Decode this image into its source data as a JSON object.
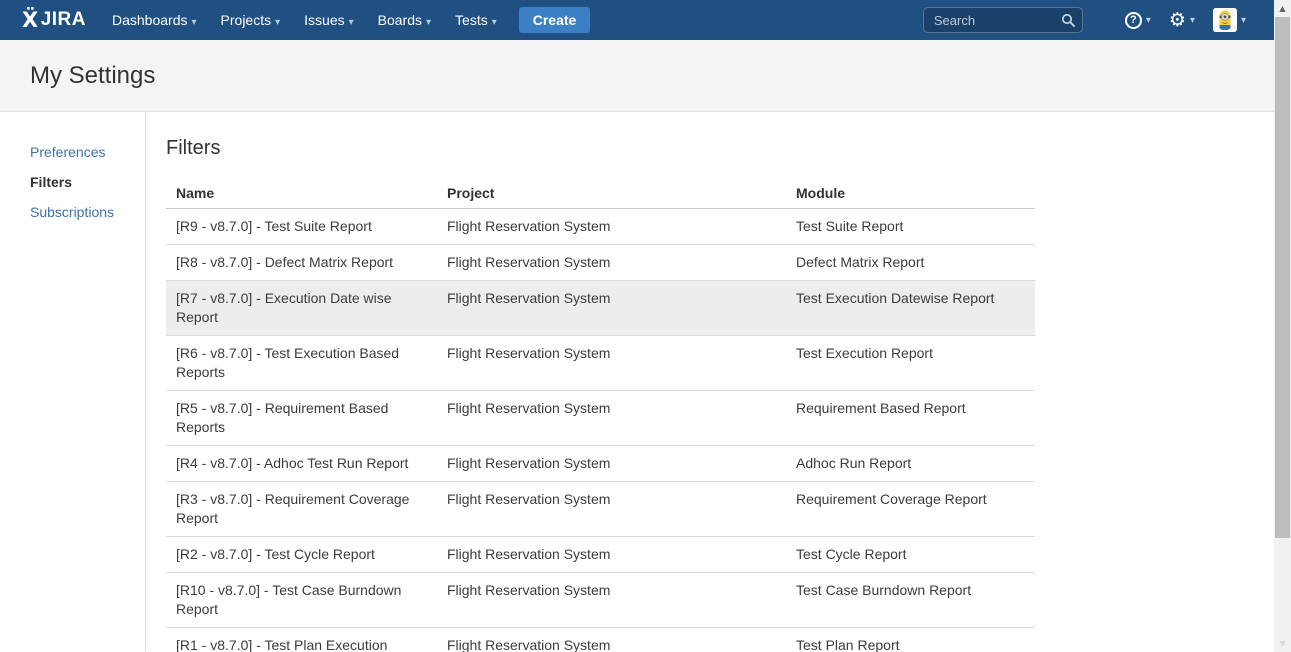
{
  "navbar": {
    "logo": {
      "mark": "Ẍ",
      "text": "JIRA"
    },
    "menus": [
      {
        "label": "Dashboards"
      },
      {
        "label": "Projects"
      },
      {
        "label": "Issues"
      },
      {
        "label": "Boards"
      },
      {
        "label": "Tests"
      }
    ],
    "create_label": "Create",
    "search_placeholder": "Search",
    "caret_glyph": "▾",
    "help_glyph": "?",
    "gear_glyph": "⚙"
  },
  "colors": {
    "navbar_bg": "#205081",
    "create_button": "#3b7fc4",
    "link": "#3b73af",
    "highlight_row": "#ededed",
    "band_bg": "#f4f4f4"
  },
  "page": {
    "title": "My Settings"
  },
  "sidebar": {
    "items": [
      {
        "label": "Preferences",
        "active": false
      },
      {
        "label": "Filters",
        "active": true
      },
      {
        "label": "Subscriptions",
        "active": false
      }
    ]
  },
  "main": {
    "heading": "Filters",
    "table": {
      "columns": [
        "Name",
        "Project",
        "Module"
      ],
      "rows": [
        {
          "name": "[R9 - v8.7.0] - Test Suite Report",
          "project": "Flight Reservation System",
          "module": "Test Suite Report",
          "highlighted": false
        },
        {
          "name": "[R8 - v8.7.0] - Defect Matrix Report",
          "project": "Flight Reservation System",
          "module": "Defect Matrix Report",
          "highlighted": false
        },
        {
          "name": "[R7 - v8.7.0] - Execution Date wise Report",
          "project": "Flight Reservation System",
          "module": "Test Execution Datewise Report",
          "highlighted": true
        },
        {
          "name": "[R6 - v8.7.0] - Test Execution Based Reports",
          "project": "Flight Reservation System",
          "module": "Test Execution Report",
          "highlighted": false
        },
        {
          "name": "[R5 - v8.7.0] - Requirement Based Reports",
          "project": "Flight Reservation System",
          "module": "Requirement Based Report",
          "highlighted": false
        },
        {
          "name": "[R4 - v8.7.0] - Adhoc Test Run Report",
          "project": "Flight Reservation System",
          "module": "Adhoc Run Report",
          "highlighted": false
        },
        {
          "name": "[R3 - v8.7.0] - Requirement Coverage Report",
          "project": "Flight Reservation System",
          "module": "Requirement Coverage Report",
          "highlighted": false
        },
        {
          "name": "[R2 - v8.7.0] - Test Cycle Report",
          "project": "Flight Reservation System",
          "module": "Test Cycle Report",
          "highlighted": false
        },
        {
          "name": "[R10 - v8.7.0] - Test Case Burndown Report",
          "project": "Flight Reservation System",
          "module": "Test Case Burndown Report",
          "highlighted": false
        },
        {
          "name": "[R1 - v8.7.0] - Test Plan Execution",
          "project": "Flight Reservation System",
          "module": "Test Plan Report",
          "highlighted": false
        }
      ]
    }
  },
  "scrollbar": {
    "up_glyph": "▲",
    "down_glyph": "▼"
  }
}
